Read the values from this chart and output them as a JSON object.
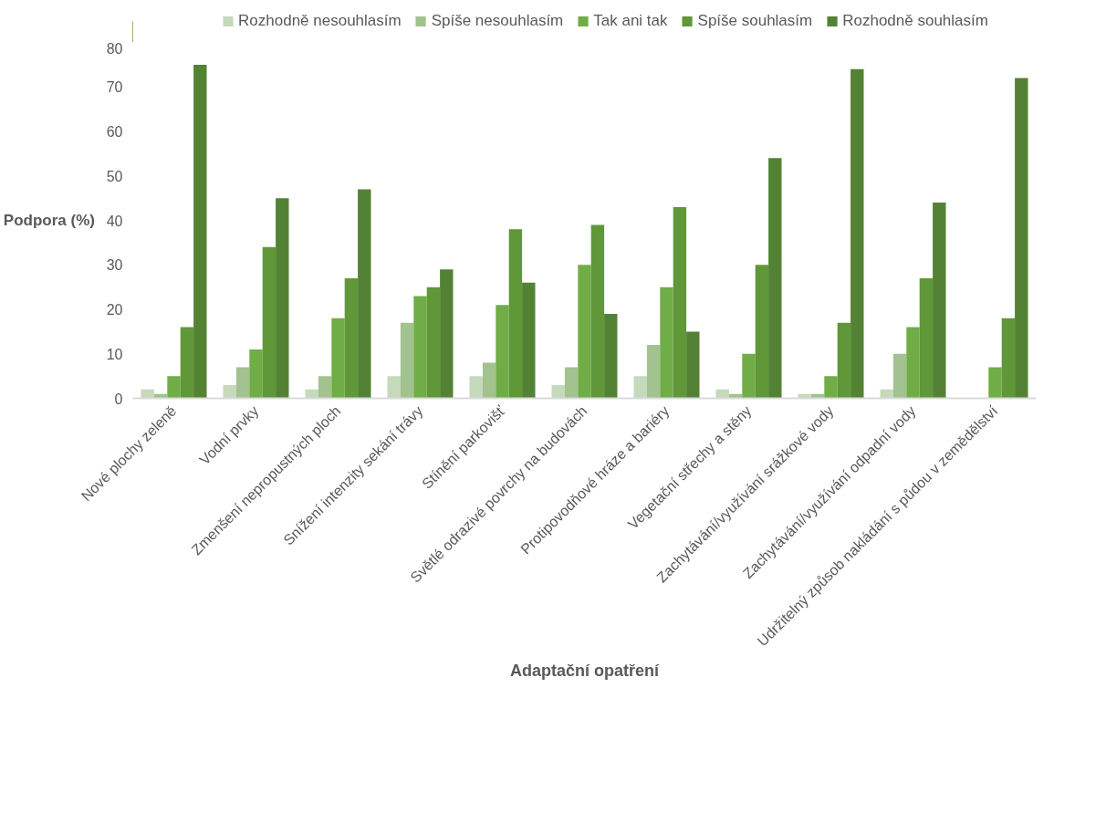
{
  "chart_data": {
    "type": "bar",
    "xlabel": "Adaptační opatření",
    "ylabel": "Podpora  (%)",
    "categories": [
      "Nové plochy zeleně",
      "Vodní prvky",
      "Zmenšení nepropustných ploch",
      "Snížení intenzity sekání trávy",
      "Stínění parkovišť",
      "Světlé odrazivé povrchy na budovách",
      "Protipovodňové hráze a bariéry",
      "Vegetační střechy a stěny",
      "Zachytávání/využívání srážkové vody",
      "Zachytávání/využívání odpadní vody",
      "Udržitelný způsob nakládání s půdou v zemědělství"
    ],
    "series": [
      {
        "name": "Rozhodně nesouhlasím",
        "color": "#c5d9bb",
        "values": [
          2,
          3,
          2,
          5,
          5,
          3,
          5,
          2,
          1,
          2,
          0
        ]
      },
      {
        "name": "Spíše nesouhlasím",
        "color": "#a2c28f",
        "values": [
          1,
          7,
          5,
          17,
          8,
          7,
          12,
          1,
          1,
          10,
          0
        ]
      },
      {
        "name": "Tak ani tak",
        "color": "#70ad47",
        "values": [
          5,
          11,
          18,
          23,
          21,
          30,
          25,
          10,
          5,
          16,
          7
        ]
      },
      {
        "name": "Spíše souhlasím",
        "color": "#609739",
        "values": [
          16,
          34,
          27,
          25,
          38,
          39,
          43,
          30,
          17,
          27,
          18
        ]
      },
      {
        "name": "Rozhodně souhlasím",
        "color": "#548235",
        "values": [
          75,
          45,
          47,
          29,
          26,
          19,
          15,
          54,
          74,
          44,
          72
        ]
      }
    ],
    "ylim": [
      0,
      80
    ],
    "yticks": [
      0,
      10,
      20,
      30,
      40,
      50,
      60,
      70,
      80
    ],
    "grid": false,
    "legend": "top"
  }
}
